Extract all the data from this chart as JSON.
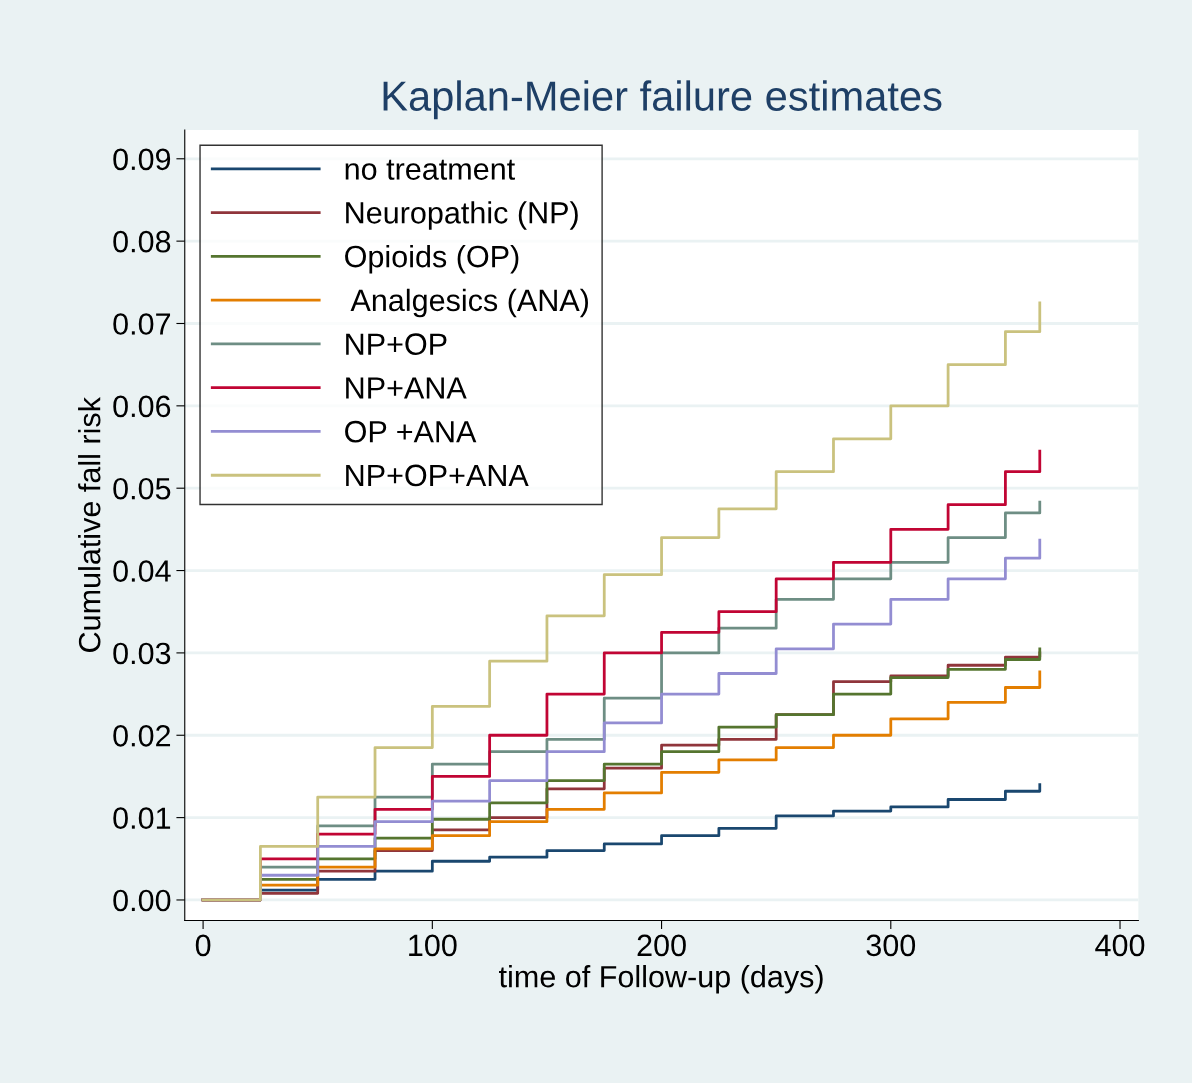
{
  "chart_data": {
    "type": "step",
    "title": "Kaplan-Meier failure estimates",
    "xlabel": "time of Follow-up (days)",
    "ylabel": "Cumulative fall risk",
    "x": [
      0,
      25,
      50,
      75,
      100,
      125,
      150,
      175,
      200,
      225,
      250,
      275,
      300,
      325,
      350,
      365
    ],
    "series": [
      {
        "name": "no treatment",
        "color": "#1a476f",
        "values": [
          0,
          0.0012,
          0.0025,
          0.0035,
          0.0047,
          0.0052,
          0.006,
          0.0068,
          0.0078,
          0.0087,
          0.0102,
          0.0108,
          0.0113,
          0.0122,
          0.0132,
          0.014
        ]
      },
      {
        "name": "Neuropathic (NP)",
        "color": "#90353b",
        "values": [
          0,
          0.0008,
          0.0035,
          0.006,
          0.0085,
          0.01,
          0.0135,
          0.016,
          0.0188,
          0.0195,
          0.0225,
          0.0265,
          0.0272,
          0.0285,
          0.0295,
          0.03
        ]
      },
      {
        "name": "Opioids (OP)",
        "color": "#55752f",
        "values": [
          0,
          0.0025,
          0.005,
          0.0075,
          0.0098,
          0.0118,
          0.0145,
          0.0165,
          0.018,
          0.021,
          0.0225,
          0.025,
          0.027,
          0.028,
          0.0292,
          0.0305
        ]
      },
      {
        "name": " Analgesics (ANA)",
        "color": "#e37e00",
        "values": [
          0,
          0.0018,
          0.004,
          0.0062,
          0.0078,
          0.0095,
          0.011,
          0.013,
          0.0155,
          0.017,
          0.0185,
          0.02,
          0.022,
          0.024,
          0.0258,
          0.0277
        ]
      },
      {
        "name": "NP+OP",
        "color": "#6e8e84",
        "values": [
          0,
          0.004,
          0.009,
          0.0125,
          0.0165,
          0.018,
          0.0195,
          0.0245,
          0.03,
          0.033,
          0.0365,
          0.039,
          0.041,
          0.044,
          0.047,
          0.0483
        ]
      },
      {
        "name": "NP+ANA",
        "color": "#c10534",
        "values": [
          0,
          0.005,
          0.008,
          0.011,
          0.015,
          0.02,
          0.025,
          0.03,
          0.0325,
          0.035,
          0.039,
          0.041,
          0.045,
          0.048,
          0.052,
          0.0545
        ]
      },
      {
        "name": "OP +ANA",
        "color": "#938dd2",
        "values": [
          0,
          0.003,
          0.0065,
          0.0095,
          0.012,
          0.0145,
          0.018,
          0.0215,
          0.025,
          0.0275,
          0.0305,
          0.0335,
          0.0365,
          0.039,
          0.0415,
          0.0437
        ]
      },
      {
        "name": "NP+OP+ANA",
        "color": "#cac27e",
        "values": [
          0,
          0.0065,
          0.0125,
          0.0185,
          0.0235,
          0.029,
          0.0345,
          0.0395,
          0.044,
          0.0475,
          0.052,
          0.056,
          0.06,
          0.065,
          0.069,
          0.0725
        ]
      }
    ],
    "xlim": [
      -8,
      408
    ],
    "xticks": [
      0,
      100,
      200,
      300,
      400
    ],
    "ylim": [
      -0.0025,
      0.0935
    ],
    "yticks": [
      {
        "value": 0,
        "label": "0.00"
      },
      {
        "value": 0.01,
        "label": "0.01"
      },
      {
        "value": 0.02,
        "label": "0.02"
      },
      {
        "value": 0.03,
        "label": "0.03"
      },
      {
        "value": 0.04,
        "label": "0.04"
      },
      {
        "value": 0.05,
        "label": "0.05"
      },
      {
        "value": 0.06,
        "label": "0.06"
      },
      {
        "value": 0.07,
        "label": "0.07"
      },
      {
        "value": 0.08,
        "label": "0.08"
      },
      {
        "value": 0.09,
        "label": "0.09"
      }
    ],
    "grid": "y",
    "legend": "top left",
    "line_style": "solid",
    "marker": "none"
  }
}
